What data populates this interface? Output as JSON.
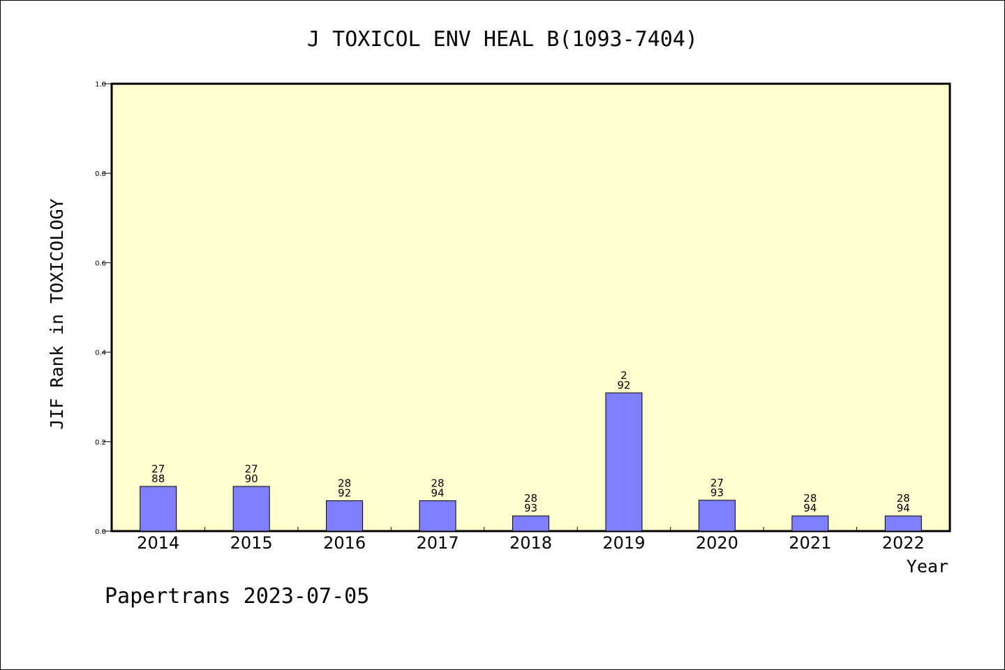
{
  "chart_data": {
    "type": "bar",
    "title": "J TOXICOL ENV HEAL B(1093-7404)",
    "xlabel": "Year",
    "ylabel": "JIF Rank in TOXICOLOGY",
    "ylim": [
      0,
      1.0
    ],
    "yticks": [
      "0.0",
      "0.2",
      "0.4",
      "0.6",
      "0.8",
      "1.0"
    ],
    "grid": false,
    "categories": [
      "2014",
      "2015",
      "2016",
      "2017",
      "2018",
      "2019",
      "2020",
      "2021",
      "2022"
    ],
    "values": [
      0.1,
      0.1,
      0.068,
      0.068,
      0.034,
      0.309,
      0.069,
      0.034,
      0.034
    ],
    "labels": [
      {
        "rank": "27",
        "total": "88"
      },
      {
        "rank": "27",
        "total": "90"
      },
      {
        "rank": "28",
        "total": "92"
      },
      {
        "rank": "28",
        "total": "94"
      },
      {
        "rank": "28",
        "total": "93"
      },
      {
        "rank": "2",
        "total": "92"
      },
      {
        "rank": "27",
        "total": "93"
      },
      {
        "rank": "28",
        "total": "94"
      },
      {
        "rank": "28",
        "total": "94"
      }
    ],
    "colors": {
      "plot_bg": "#ffffd0",
      "bar_fill": "#8080ff",
      "bar_stroke": "#000000"
    }
  },
  "footer": "Papertrans 2023-07-05"
}
